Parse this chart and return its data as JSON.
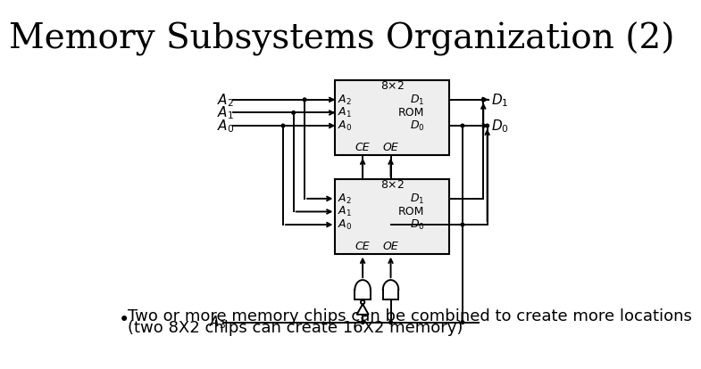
{
  "title": "Memory Subsystems Organization (2)",
  "bullet_line1": "Two or more memory chips can be combined to create more locations",
  "bullet_line2": "(two 8X2 chips can create 16X2 memory)",
  "bg_color": "#ffffff",
  "text_color": "#000000",
  "title_fontsize": 28,
  "body_fontsize": 13
}
